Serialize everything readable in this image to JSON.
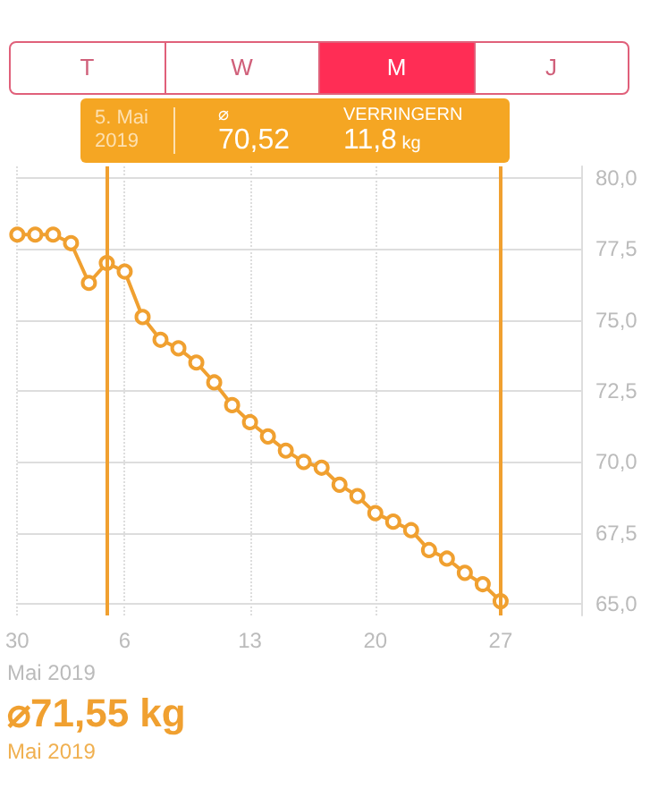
{
  "chart_data": {
    "type": "line",
    "color": "#f0a030",
    "marker": "circle",
    "line_style": "solid",
    "grid": true,
    "x": [
      "2019-04-30",
      "2019-05-01",
      "2019-05-02",
      "2019-05-03",
      "2019-05-04",
      "2019-05-05",
      "2019-05-06",
      "2019-05-07",
      "2019-05-08",
      "2019-05-09",
      "2019-05-10",
      "2019-05-11",
      "2019-05-12",
      "2019-05-13",
      "2019-05-14",
      "2019-05-15",
      "2019-05-16",
      "2019-05-17",
      "2019-05-18",
      "2019-05-19",
      "2019-05-20",
      "2019-05-21",
      "2019-05-22",
      "2019-05-23",
      "2019-05-24",
      "2019-05-25",
      "2019-05-26",
      "2019-05-27"
    ],
    "values": [
      78.0,
      78.0,
      78.0,
      77.7,
      76.3,
      77.0,
      76.7,
      75.1,
      74.3,
      74.0,
      73.5,
      72.8,
      72.0,
      71.4,
      70.9,
      70.4,
      70.0,
      69.8,
      69.2,
      68.8,
      68.2,
      67.9,
      67.6,
      66.9,
      66.6,
      66.1,
      65.7,
      65.1
    ],
    "xlim": [
      "2019-04-30",
      "2019-05-31T12:00"
    ],
    "xticks": [
      {
        "value": "2019-04-30",
        "label": "30"
      },
      {
        "value": "2019-05-06",
        "label": "6"
      },
      {
        "value": "2019-05-13",
        "label": "13"
      },
      {
        "value": "2019-05-20",
        "label": "20"
      },
      {
        "value": "2019-05-27",
        "label": "27"
      }
    ],
    "ylim": [
      64.6,
      80.4
    ],
    "yticks": [
      {
        "value": 65,
        "label": "65,0"
      },
      {
        "value": 67.5,
        "label": "67,5"
      },
      {
        "value": 70,
        "label": "70,0"
      },
      {
        "value": 72.5,
        "label": "72,5"
      },
      {
        "value": 75,
        "label": "75,0"
      },
      {
        "value": 77.5,
        "label": "77,5"
      },
      {
        "value": 80,
        "label": "80,0"
      }
    ],
    "ref_lines": [
      {
        "axis": "x",
        "value": "2019-05-05",
        "color": "#f0a030"
      },
      {
        "axis": "x",
        "value": "2019-05-27",
        "color": "#f0a030"
      }
    ],
    "annotations": [
      "T",
      "W",
      "M",
      "J",
      "5. Mai 2019",
      "⌀",
      "70,52",
      "VERRINGERN",
      "11,8 kg",
      "Mai 2019",
      "⌀71,55 kg",
      "Mai 2019"
    ]
  }
}
